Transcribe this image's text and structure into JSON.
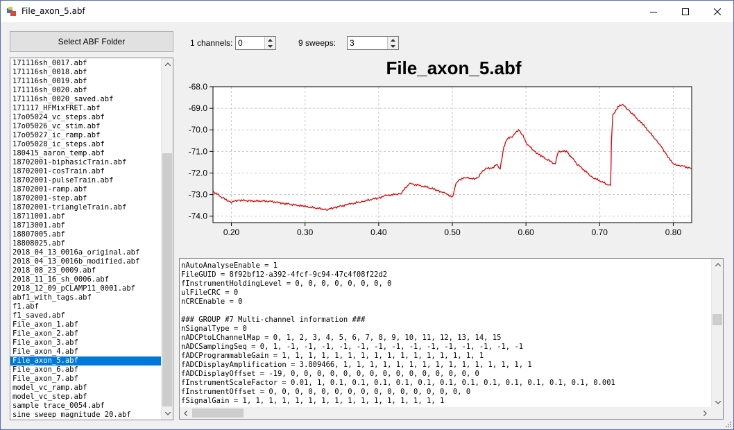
{
  "window": {
    "title": "File_axon_5.abf"
  },
  "toolbar": {
    "select_folder_label": "Select ABF Folder",
    "channels_label": "1 channels:",
    "channels_value": "0",
    "sweeps_label": "9 sweeps:",
    "sweeps_value": "3"
  },
  "files": [
    "171116sh_0017.abf",
    "171116sh_0018.abf",
    "171116sh_0019.abf",
    "171116sh_0020.abf",
    "171116sh_0020_saved.abf",
    "171117_HFMixFRET.abf",
    "17o05024_vc_steps.abf",
    "17o05026_vc_stim.abf",
    "17o05027_ic_ramp.abf",
    "17o05028_ic_steps.abf",
    "180415_aaron_temp.abf",
    "18702001-biphasicTrain.abf",
    "18702001-cosTrain.abf",
    "18702001-pulseTrain.abf",
    "18702001-ramp.abf",
    "18702001-step.abf",
    "18702001-triangleTrain.abf",
    "18711001.abf",
    "18713001.abf",
    "18807005.abf",
    "18808025.abf",
    "2018_04_13_0016a_original.abf",
    "2018_04_13_0016b_modified.abf",
    "2018_08_23_0009.abf",
    "2018_11_16_sh_0006.abf",
    "2018_12_09_pCLAMP11_0001.abf",
    "abf1_with_tags.abf",
    "f1.abf",
    "f1_saved.abf",
    "File_axon_1.abf",
    "File_axon_2.abf",
    "File_axon_3.abf",
    "File_axon_4.abf",
    "File_axon_5.abf",
    "File_axon_6.abf",
    "File_axon_7.abf",
    "model_vc_ramp.abf",
    "model_vc_step.abf",
    "sample trace_0054.abf",
    "sine sweep magnitude 20.abf"
  ],
  "selected_index": 33,
  "header_lines": [
    "nAutoAnalyseEnable = 1",
    "FileGUID = 8f92bf12-a392-4fcf-9c94-47c4f08f22d2",
    "fInstrumentHoldingLevel = 0, 0, 0, 0, 0, 0, 0, 0",
    "ulFileCRC = 0",
    "nCRCEnable = 0",
    "",
    "### GROUP #7 Multi-channel information ###",
    "nSignalType = 0",
    "nADCPtoLChannelMap = 0, 1, 2, 3, 4, 5, 6, 7, 8, 9, 10, 11, 12, 13, 14, 15",
    "nADCSamplingSeq = 0, 1, -1, -1, -1, -1, -1, -1, -1, -1, -1, -1, -1, -1, -1, -1",
    "fADCProgrammableGain = 1, 1, 1, 1, 1, 1, 1, 1, 1, 1, 1, 1, 1, 1, 1, 1",
    "fADCDisplayAmplification = 3.809466, 1, 1, 1, 1, 1, 1, 1, 1, 1, 1, 1, 1, 1, 1, 1",
    "fADCDisplayOffset = -19, 0, 0, 0, 0, 0, 0, 0, 0, 0, 0, 0, 0, 0, 0, 0",
    "fInstrumentScaleFactor = 0.01, 1, 0.1, 0.1, 0.1, 0.1, 0.1, 0.1, 0.1, 0.1, 0.1, 0.1, 0.1, 0.1, 0.001",
    "fInstrumentOffset = 0, 0, 0, 0, 0, 0, 0, 0, 0, 0, 0, 0, 0, 0, 0, 0",
    "fSignalGain = 1, 1, 1, 1, 1, 1, 1, 1, 1, 1, 1, 1, 1, 1, 1, 1"
  ],
  "colors": {
    "trace": "#dd0000",
    "selection": "#0078d7"
  },
  "chart_data": {
    "type": "line",
    "title": "File_axon_5.abf",
    "xlim": [
      0.175,
      0.825
    ],
    "ylim": [
      -74.3,
      -68.0
    ],
    "xticks": [
      0.2,
      0.3,
      0.4,
      0.5,
      0.6,
      0.7,
      0.8
    ],
    "xtick_labels": [
      "0.20",
      "0.30",
      "0.40",
      "0.50",
      "0.60",
      "0.70",
      "0.80"
    ],
    "yticks": [
      -68,
      -69,
      -70,
      -71,
      -72,
      -73,
      -74
    ],
    "ytick_labels": [
      "-68.0",
      "-69.0",
      "-70.0",
      "-71.0",
      "-72.0",
      "-73.0",
      "-74.0"
    ],
    "grid": true,
    "series": [
      {
        "x": [
          0.175,
          0.19,
          0.2,
          0.21,
          0.225,
          0.25,
          0.27,
          0.3,
          0.33,
          0.34,
          0.36,
          0.38,
          0.4,
          0.41,
          0.43,
          0.44,
          0.443,
          0.46,
          0.48,
          0.49,
          0.5,
          0.502,
          0.505,
          0.51,
          0.52,
          0.53,
          0.535,
          0.54,
          0.545,
          0.555,
          0.56,
          0.565,
          0.57,
          0.572,
          0.575,
          0.58,
          0.59,
          0.595,
          0.6,
          0.61,
          0.62,
          0.635,
          0.64,
          0.642,
          0.645,
          0.655,
          0.67,
          0.69,
          0.715,
          0.716,
          0.718,
          0.725,
          0.73,
          0.74,
          0.76,
          0.78,
          0.79,
          0.8,
          0.81,
          0.825
        ],
        "y": [
          -72.85,
          -73.2,
          -73.35,
          -73.25,
          -73.3,
          -73.3,
          -73.4,
          -73.55,
          -73.7,
          -73.6,
          -73.45,
          -73.3,
          -73.15,
          -73.05,
          -72.95,
          -72.55,
          -72.5,
          -72.6,
          -72.8,
          -72.95,
          -73.1,
          -72.9,
          -72.5,
          -72.3,
          -72.2,
          -72.3,
          -72.2,
          -71.95,
          -71.8,
          -71.75,
          -71.6,
          -71.8,
          -70.8,
          -70.6,
          -70.4,
          -70.35,
          -70.0,
          -70.2,
          -70.6,
          -70.95,
          -71.2,
          -71.5,
          -71.6,
          -71.2,
          -71.0,
          -71.0,
          -71.6,
          -72.2,
          -72.6,
          -70.5,
          -69.3,
          -68.95,
          -68.8,
          -69.1,
          -69.8,
          -70.6,
          -71.1,
          -71.6,
          -71.65,
          -71.8
        ]
      }
    ]
  }
}
